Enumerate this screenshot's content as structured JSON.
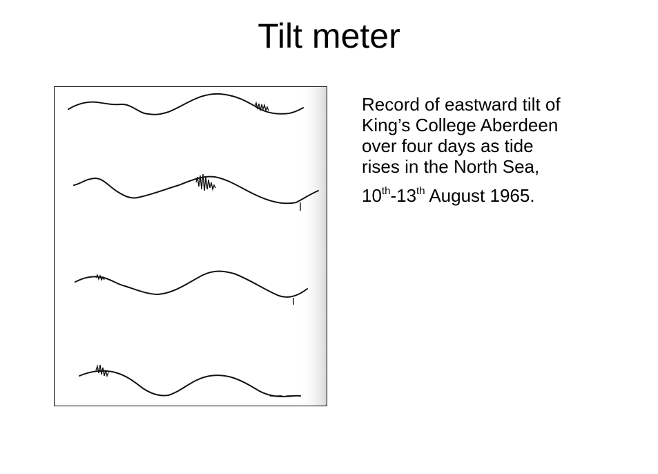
{
  "slide": {
    "title": "Tilt meter",
    "caption_lines": [
      "Record of eastward tilt of",
      "King’s College Aberdeen",
      "over four days as tide",
      "rises in the North Sea,"
    ],
    "date": {
      "start_day": "10",
      "start_suffix": "th",
      "separator": "-",
      "end_day": "13",
      "end_suffix": "th",
      "rest": " August 1965."
    }
  },
  "colors": {
    "background": "#ffffff",
    "text": "#000000",
    "trace": "#111111",
    "paper_shade": "#e6e6e6"
  }
}
